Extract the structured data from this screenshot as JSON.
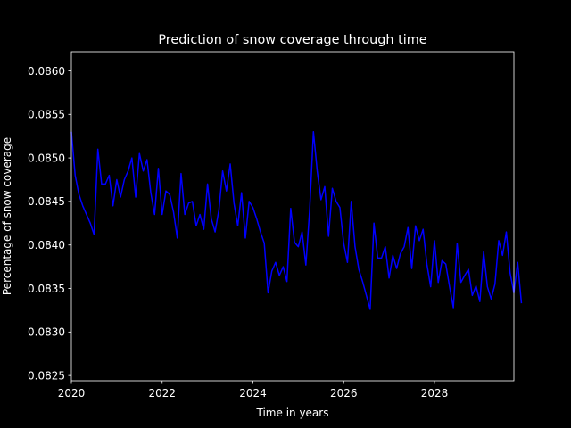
{
  "chart_data": {
    "type": "line",
    "title": "Prediction of snow coverage through time",
    "xlabel": "Time in years",
    "ylabel": "Percentage of snow coverage",
    "xlim": [
      2020.0,
      2029.75
    ],
    "ylim": [
      0.08244,
      0.08622
    ],
    "x_ticks": [
      2020,
      2022,
      2024,
      2026,
      2028
    ],
    "x_tick_labels": [
      "2020",
      "2022",
      "2024",
      "2026",
      "2028"
    ],
    "y_ticks": [
      0.0825,
      0.083,
      0.0835,
      0.084,
      0.0845,
      0.085,
      0.0855,
      0.086
    ],
    "y_tick_labels": [
      "0.0825",
      "0.0830",
      "0.0835",
      "0.0840",
      "0.0845",
      "0.0850",
      "0.0855",
      "0.0860"
    ],
    "grid": false,
    "colors": {
      "background": "#000000",
      "foreground": "#ffffff",
      "line": "#0000ff"
    },
    "series": [
      {
        "x_start": 2020.0,
        "x_step": 0.08333,
        "values": [
          0.0853,
          0.0848,
          0.08458,
          0.08445,
          0.08435,
          0.08425,
          0.08412,
          0.0851,
          0.0847,
          0.0847,
          0.0848,
          0.08445,
          0.08475,
          0.08455,
          0.08475,
          0.08485,
          0.085,
          0.08455,
          0.08505,
          0.08485,
          0.08498,
          0.0846,
          0.08435,
          0.08488,
          0.08435,
          0.08462,
          0.08458,
          0.08438,
          0.08408,
          0.08482,
          0.08435,
          0.08448,
          0.0845,
          0.08422,
          0.08435,
          0.08418,
          0.0847,
          0.0843,
          0.08415,
          0.0844,
          0.08485,
          0.08462,
          0.08493,
          0.08448,
          0.08422,
          0.0846,
          0.08408,
          0.0845,
          0.08443,
          0.0843,
          0.08415,
          0.08402,
          0.08345,
          0.0837,
          0.0838,
          0.08365,
          0.08375,
          0.08358,
          0.08442,
          0.08403,
          0.08398,
          0.08415,
          0.08377,
          0.0844,
          0.0853,
          0.08485,
          0.08452,
          0.08467,
          0.0841,
          0.08465,
          0.0845,
          0.08443,
          0.08402,
          0.0838,
          0.0845,
          0.08398,
          0.08372,
          0.08358,
          0.08342,
          0.08326,
          0.08425,
          0.08385,
          0.08385,
          0.08398,
          0.08362,
          0.08388,
          0.08373,
          0.0839,
          0.08398,
          0.0842,
          0.08373,
          0.08422,
          0.08405,
          0.08418,
          0.08378,
          0.08352,
          0.08405,
          0.08357,
          0.08382,
          0.08378,
          0.08352,
          0.08328,
          0.08402,
          0.08357,
          0.08365,
          0.08372,
          0.08342,
          0.08353,
          0.08335,
          0.08392,
          0.08352,
          0.08338,
          0.08355,
          0.08405,
          0.08388,
          0.08415,
          0.08368,
          0.08345,
          0.0838,
          0.08333
        ]
      }
    ]
  }
}
